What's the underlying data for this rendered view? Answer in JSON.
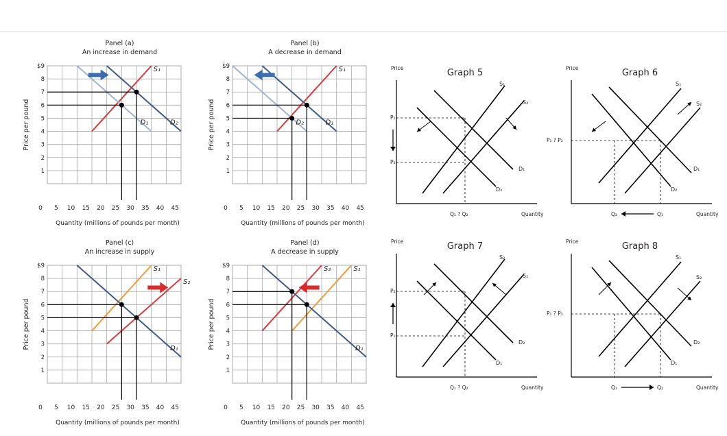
{
  "colors": {
    "grid": "#a7a9ac",
    "axis": "#231f20",
    "demand": "#3c5a88",
    "demand_old": "#9fb3d4",
    "supply": "#d93a3a",
    "supply_alt": "#f29a3c",
    "arrow_blue": "#3b6cb0",
    "arrow_red": "#d92b2b",
    "black": "#000000"
  },
  "chart_data": [
    {
      "type": "line",
      "title": "Panel (a)",
      "subtitle": "An increase in demand",
      "xlabel": "Quantity (millions of pounds per month)",
      "ylabel": "Price per pound",
      "x_ticks": [
        "0",
        "5",
        "10",
        "15",
        "20",
        "25",
        "30",
        "35",
        "40",
        "45"
      ],
      "y_ticks": [
        "$9",
        "8",
        "7",
        "6",
        "5",
        "4",
        "3",
        "2",
        "1"
      ],
      "xlim": [
        0,
        45
      ],
      "ylim": [
        0,
        9
      ],
      "grid": true,
      "series": [
        {
          "name": "S1",
          "label": "S₁",
          "color": "supply",
          "points": [
            [
              15,
              4
            ],
            [
              35,
              9
            ]
          ]
        },
        {
          "name": "D1",
          "label": "D₁",
          "color": "demand_old",
          "points": [
            [
              10,
              9
            ],
            [
              35,
              4
            ]
          ]
        },
        {
          "name": "D2",
          "label": "D₂",
          "color": "demand",
          "points": [
            [
              20,
              9
            ],
            [
              45,
              4
            ]
          ]
        }
      ],
      "equilibria": [
        [
          25,
          6
        ],
        [
          30,
          7
        ]
      ],
      "shift_arrow": {
        "direction": "right",
        "color": "arrow_blue",
        "at": [
          17,
          8.3
        ]
      }
    },
    {
      "type": "line",
      "title": "Panel (b)",
      "subtitle": "A decrease in demand",
      "xlabel": "Quantity (millions of pounds per month)",
      "ylabel": "Price per pound",
      "x_ticks": [
        "0",
        "5",
        "10",
        "15",
        "20",
        "25",
        "30",
        "35",
        "40",
        "45"
      ],
      "y_ticks": [
        "$9",
        "8",
        "7",
        "6",
        "5",
        "4",
        "3",
        "2",
        "1"
      ],
      "xlim": [
        0,
        45
      ],
      "ylim": [
        0,
        9
      ],
      "grid": true,
      "series": [
        {
          "name": "S1",
          "label": "S₁",
          "color": "supply",
          "points": [
            [
              15,
              4
            ],
            [
              35,
              9
            ]
          ]
        },
        {
          "name": "D1",
          "label": "D₁",
          "color": "demand",
          "points": [
            [
              10,
              9
            ],
            [
              35,
              4
            ]
          ]
        },
        {
          "name": "D2",
          "label": "D₂",
          "color": "demand_old",
          "points": [
            [
              0,
              9
            ],
            [
              25,
              4
            ]
          ]
        }
      ],
      "equilibria": [
        [
          25,
          6
        ],
        [
          20,
          5
        ]
      ],
      "shift_arrow": {
        "direction": "left",
        "color": "arrow_blue",
        "at": [
          11,
          8.3
        ]
      }
    },
    {
      "type": "line",
      "title": "Panel (c)",
      "subtitle": "An increase in supply",
      "xlabel": "Quantity (millions of pounds per month)",
      "ylabel": "Price per pound",
      "x_ticks": [
        "0",
        "5",
        "10",
        "15",
        "20",
        "25",
        "30",
        "35",
        "40",
        "45"
      ],
      "y_ticks": [
        "$9",
        "8",
        "7",
        "6",
        "5",
        "4",
        "3",
        "2",
        "1"
      ],
      "xlim": [
        0,
        45
      ],
      "ylim": [
        0,
        9
      ],
      "grid": true,
      "series": [
        {
          "name": "S1",
          "label": "S₁",
          "color": "supply_alt",
          "points": [
            [
              15,
              4
            ],
            [
              35,
              9
            ]
          ]
        },
        {
          "name": "S2",
          "label": "S₂",
          "color": "supply",
          "points": [
            [
              20,
              3
            ],
            [
              45,
              8
            ]
          ]
        },
        {
          "name": "D1",
          "label": "D₁",
          "color": "demand",
          "points": [
            [
              10,
              9
            ],
            [
              45,
              2
            ]
          ]
        }
      ],
      "equilibria": [
        [
          25,
          6
        ],
        [
          30,
          5
        ]
      ],
      "shift_arrow": {
        "direction": "right",
        "color": "arrow_red",
        "at": [
          37,
          7.3
        ]
      }
    },
    {
      "type": "line",
      "title": "Panel (d)",
      "subtitle": "A decrease in supply",
      "xlabel": "Quantity (millions of pounds per month)",
      "ylabel": "Price per pound",
      "x_ticks": [
        "0",
        "5",
        "10",
        "15",
        "20",
        "25",
        "30",
        "35",
        "40",
        "45"
      ],
      "y_ticks": [
        "$9",
        "8",
        "7",
        "6",
        "5",
        "4",
        "3",
        "2",
        "1"
      ],
      "xlim": [
        0,
        45
      ],
      "ylim": [
        0,
        9
      ],
      "grid": true,
      "series": [
        {
          "name": "S1",
          "label": "S₁",
          "color": "supply_alt",
          "points": [
            [
              20,
              4
            ],
            [
              40,
              9
            ]
          ]
        },
        {
          "name": "S2",
          "label": "S₂",
          "color": "supply",
          "points": [
            [
              10,
              4
            ],
            [
              30,
              9
            ]
          ]
        },
        {
          "name": "D1",
          "label": "D₁",
          "color": "demand",
          "points": [
            [
              10,
              9
            ],
            [
              45,
              2
            ]
          ]
        }
      ],
      "equilibria": [
        [
          25,
          6
        ],
        [
          20,
          7
        ]
      ],
      "shift_arrow": {
        "direction": "left",
        "color": "arrow_red",
        "at": [
          26,
          7.3
        ]
      }
    },
    {
      "type": "diagram",
      "title": "Graph 5",
      "ylabel": "Price",
      "xlabel": "Quantity",
      "curve_labels": [
        "S₁",
        "S₂",
        "D₁",
        "D₂"
      ],
      "price_labels": [
        "P₁",
        "P₂"
      ],
      "quantity_label": "Q₁ ? Q₂",
      "shift": "supply increase, demand decrease"
    },
    {
      "type": "diagram",
      "title": "Graph 6",
      "ylabel": "Price",
      "xlabel": "Quantity",
      "curve_labels": [
        "S₁",
        "S₂",
        "D₁",
        "D₂"
      ],
      "price_label": "P₁ ? P₂",
      "quantity_labels": [
        "Q₂",
        "Q₁"
      ],
      "shift": "supply decrease, demand decrease"
    },
    {
      "type": "diagram",
      "title": "Graph 7",
      "ylabel": "Price",
      "xlabel": "Quantity",
      "curve_labels": [
        "S₂",
        "S₁",
        "D₂",
        "D₁"
      ],
      "price_labels": [
        "P₂",
        "P₁"
      ],
      "quantity_label": "Q₁ ? Q₂",
      "shift": "supply decrease, demand increase"
    },
    {
      "type": "diagram",
      "title": "Graph 8",
      "ylabel": "Price",
      "xlabel": "Quantity",
      "curve_labels": [
        "S₁",
        "S₂",
        "D₂",
        "D₁"
      ],
      "price_label": "P₁ ? P₂",
      "quantity_labels": [
        "Q₁",
        "Q₂"
      ],
      "shift": "supply increase, demand increase"
    }
  ]
}
